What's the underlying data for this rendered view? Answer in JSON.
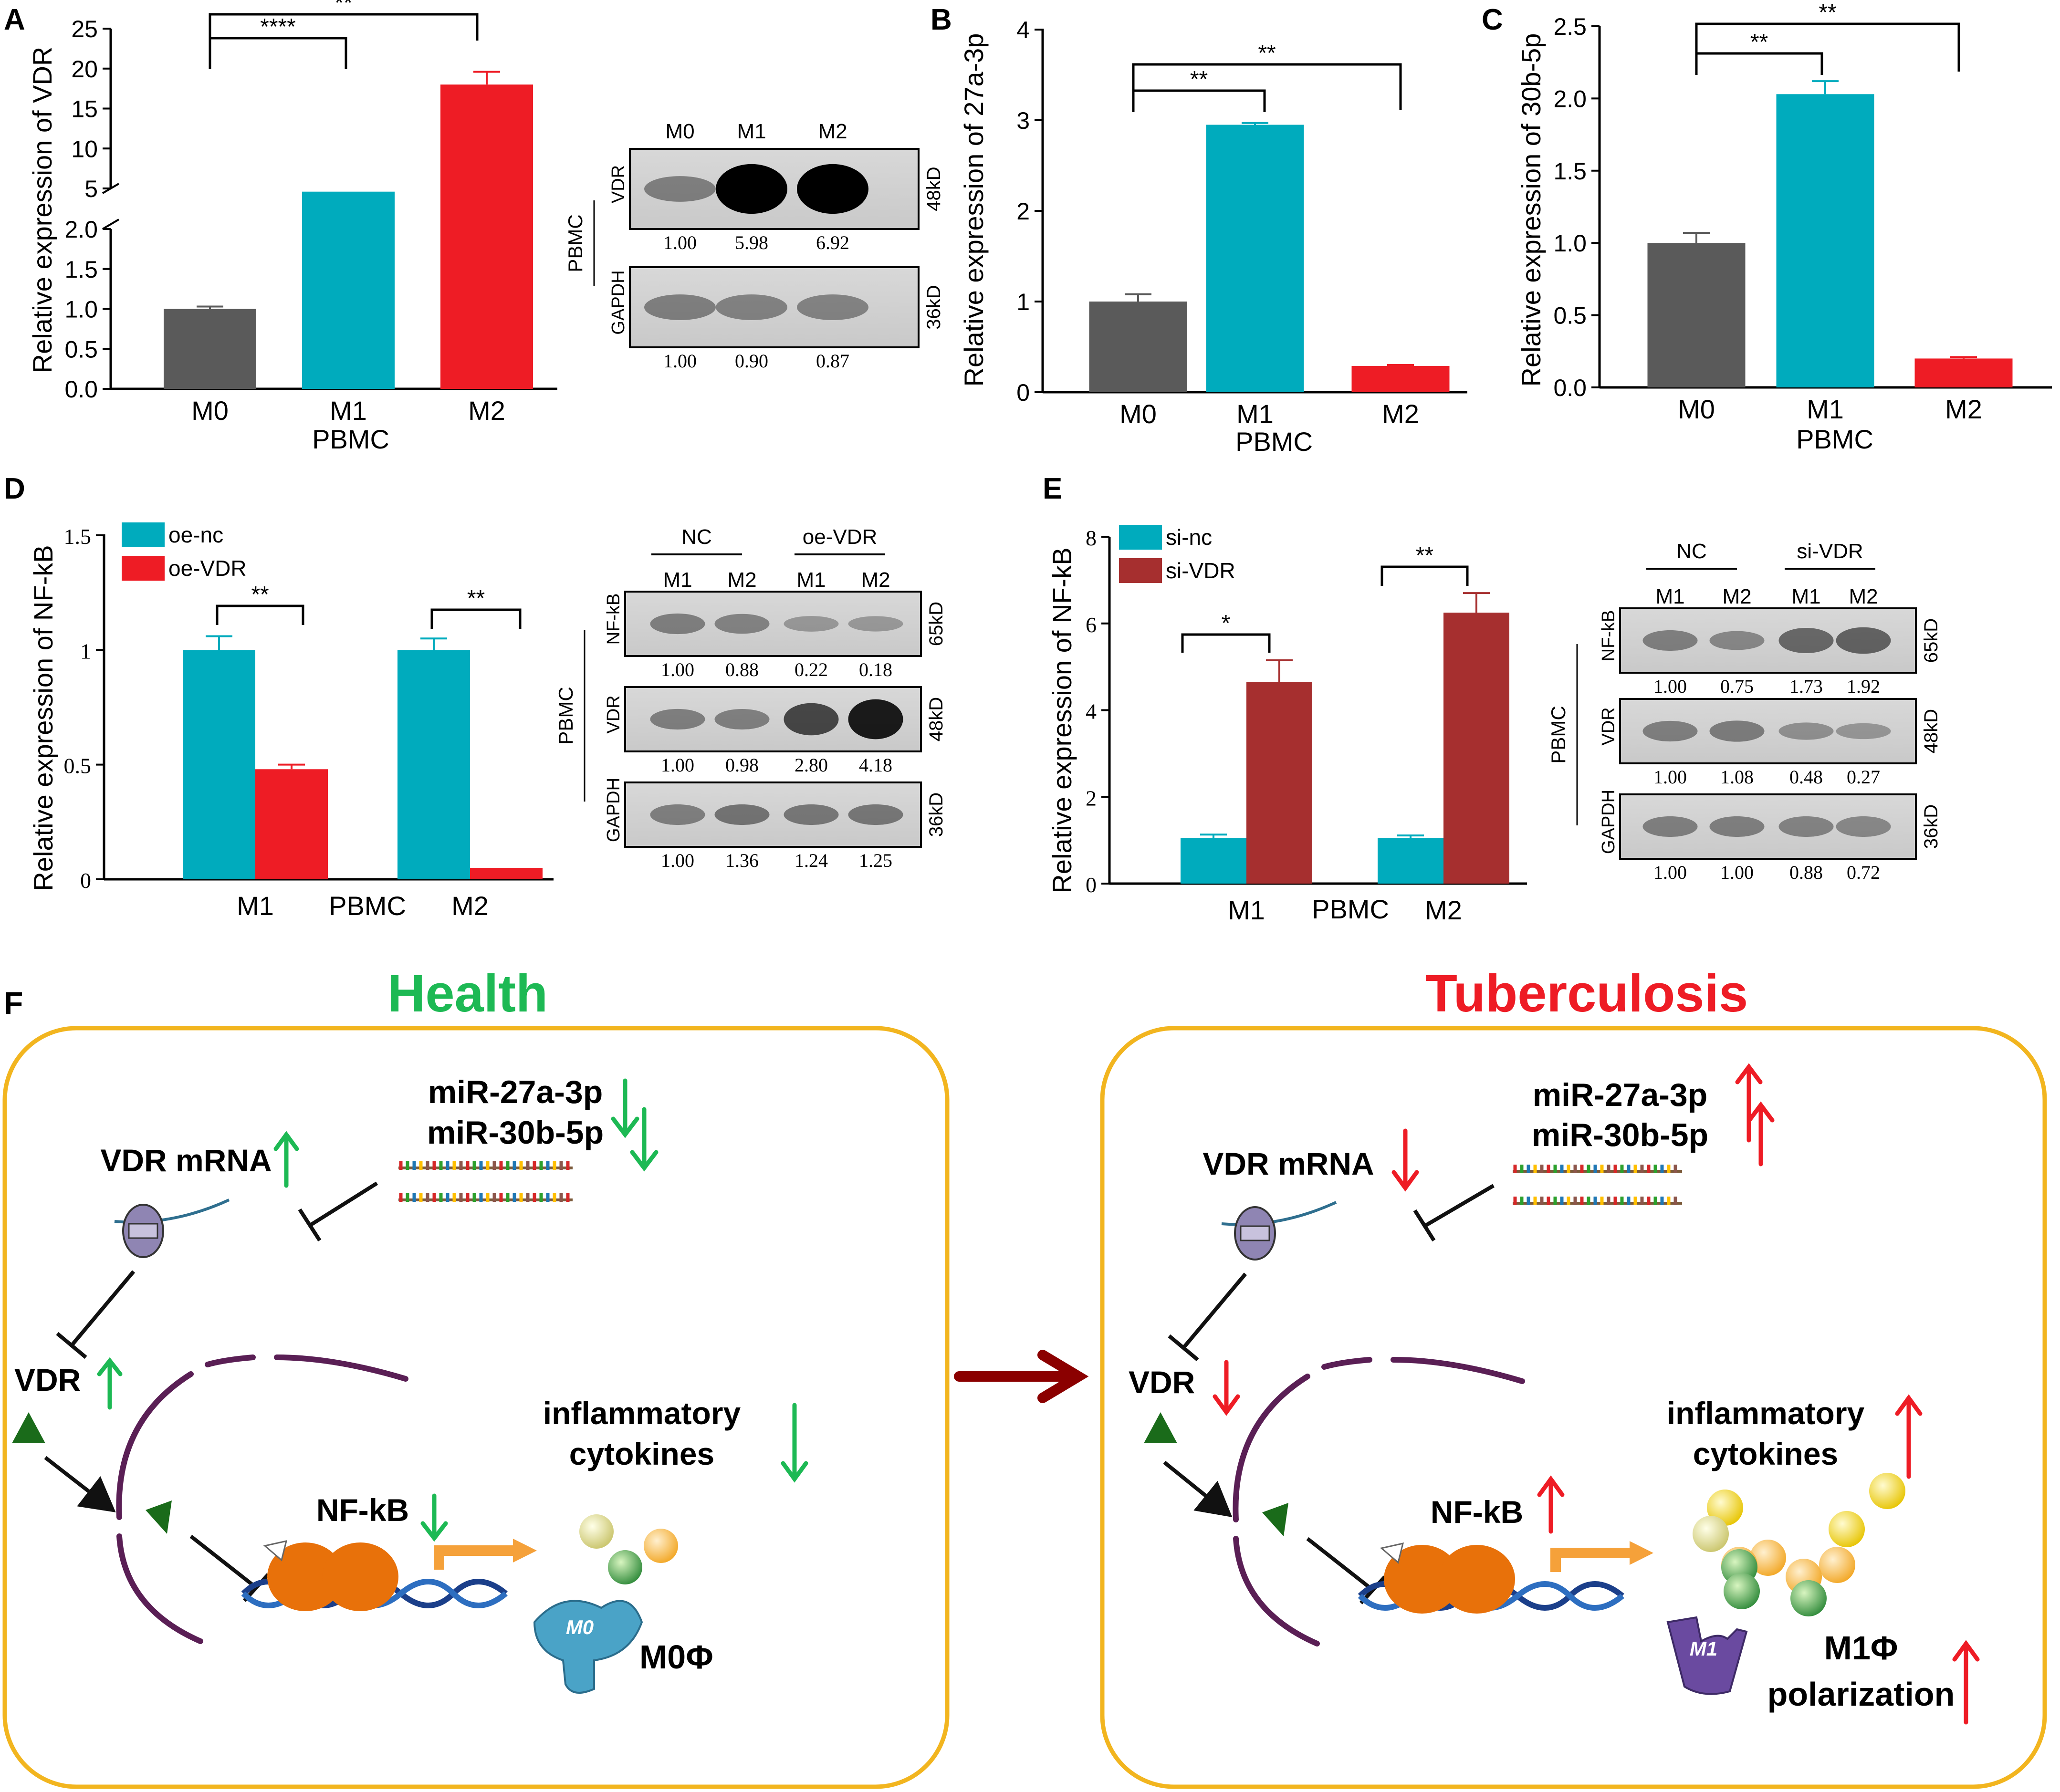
{
  "colors": {
    "gray": "#5a5a5a",
    "teal": "#00abbd",
    "red": "#ee1c25",
    "darkred": "#a62f2f",
    "green": "#1db954",
    "tb_red": "#ee1c25",
    "cell_border": "#f2b51f",
    "big_arrow": "#8b0000"
  },
  "chart_data": [
    {
      "panel": "A",
      "type": "bar",
      "categories": [
        "M0",
        "M1",
        "M2"
      ],
      "values": [
        1.0,
        4.6,
        18.0
      ],
      "errors": [
        0.03,
        0.0,
        1.6
      ],
      "xlabel": "PBMC",
      "ylabel": "Relative expression of VDR",
      "ylim": [
        0,
        25
      ],
      "axis_break": [
        2.0,
        5
      ],
      "lower_ticks": [
        "0.0",
        "0.5",
        "1.0",
        "1.5",
        "2.0"
      ],
      "upper_ticks": [
        "5",
        "10",
        "15",
        "20",
        "25"
      ],
      "significance": [
        {
          "from": "M0",
          "to": "M1",
          "label": "****"
        },
        {
          "from": "M0",
          "to": "M2",
          "label": "**"
        }
      ]
    },
    {
      "panel": "B",
      "type": "bar",
      "categories": [
        "M0",
        "M1",
        "M2"
      ],
      "values": [
        1.0,
        2.95,
        0.29
      ],
      "errors": [
        0.08,
        0.02,
        0.01
      ],
      "xlabel": "PBMC",
      "ylabel": "Relative expression of 27a-3p",
      "ylim": [
        0,
        4
      ],
      "ticks": [
        "0",
        "1",
        "2",
        "3",
        "4"
      ],
      "significance": [
        {
          "from": "M0",
          "to": "M1",
          "label": "**"
        },
        {
          "from": "M0",
          "to": "M2",
          "label": "**"
        }
      ]
    },
    {
      "panel": "C",
      "type": "bar",
      "categories": [
        "M0",
        "M1",
        "M2"
      ],
      "values": [
        1.0,
        2.03,
        0.2
      ],
      "errors": [
        0.07,
        0.09,
        0.01
      ],
      "xlabel": "PBMC",
      "ylabel": "Relative expression of 30b-5p",
      "ylim": [
        0,
        2.5
      ],
      "ticks": [
        "0.0",
        "0.5",
        "1.0",
        "1.5",
        "2.0",
        "2.5"
      ],
      "significance": [
        {
          "from": "M0",
          "to": "M1",
          "label": "**"
        },
        {
          "from": "M0",
          "to": "M2",
          "label": "**"
        }
      ]
    },
    {
      "panel": "D",
      "type": "bar",
      "categories": [
        "M1",
        "M2"
      ],
      "xlabel": "PBMC",
      "ylabel": "Relative expression of NF-kB",
      "ylim": [
        0,
        1.5
      ],
      "ticks": [
        "0",
        "0.5",
        "1",
        "1.5"
      ],
      "series": [
        {
          "name": "oe-nc",
          "values": [
            1.0,
            1.0
          ],
          "errors": [
            0.06,
            0.05
          ]
        },
        {
          "name": "oe-VDR",
          "values": [
            0.48,
            0.05
          ],
          "errors": [
            0.02,
            0.0
          ]
        }
      ],
      "significance": [
        {
          "group": "M1",
          "label": "**"
        },
        {
          "group": "M2",
          "label": "**"
        }
      ]
    },
    {
      "panel": "E",
      "type": "bar",
      "categories": [
        "M1",
        "M2"
      ],
      "xlabel": "PBMC",
      "ylabel": "Relative expression of NF-kB",
      "ylim": [
        0,
        8
      ],
      "ticks": [
        "0",
        "2",
        "4",
        "6",
        "8"
      ],
      "series": [
        {
          "name": "si-nc",
          "values": [
            1.05,
            1.05
          ],
          "errors": [
            0.08,
            0.06
          ]
        },
        {
          "name": "si-VDR",
          "values": [
            4.65,
            6.25
          ],
          "errors": [
            0.5,
            0.45
          ]
        }
      ],
      "significance": [
        {
          "group": "M1",
          "label": "*"
        },
        {
          "group": "M2",
          "label": "**"
        }
      ]
    }
  ],
  "blotA": {
    "lanes": [
      "M0",
      "M1",
      "M2"
    ],
    "side": "PBMC",
    "rows": [
      {
        "protein": "VDR",
        "kd": "48kD",
        "quant": [
          "1.00",
          "5.98",
          "6.92"
        ]
      },
      {
        "protein": "GAPDH",
        "kd": "36kD",
        "quant": [
          "1.00",
          "0.90",
          "0.87"
        ]
      }
    ]
  },
  "blotD": {
    "groups": [
      "NC",
      "oe-VDR"
    ],
    "lanes": [
      "M1",
      "M2",
      "M1",
      "M2"
    ],
    "side": "PBMC",
    "rows": [
      {
        "protein": "NF-kB",
        "kd": "65kD",
        "quant": [
          "1.00",
          "0.88",
          "0.22",
          "0.18"
        ]
      },
      {
        "protein": "VDR",
        "kd": "48kD",
        "quant": [
          "1.00",
          "0.98",
          "2.80",
          "4.18"
        ]
      },
      {
        "protein": "GAPDH",
        "kd": "36kD",
        "quant": [
          "1.00",
          "1.36",
          "1.24",
          "1.25"
        ]
      }
    ]
  },
  "blotE": {
    "groups": [
      "NC",
      "si-VDR"
    ],
    "lanes": [
      "M1",
      "M2",
      "M1",
      "M2"
    ],
    "side": "PBMC",
    "rows": [
      {
        "protein": "NF-kB",
        "kd": "65kD",
        "quant": [
          "1.00",
          "0.75",
          "1.73",
          "1.92"
        ]
      },
      {
        "protein": "VDR",
        "kd": "48kD",
        "quant": [
          "1.00",
          "1.08",
          "0.48",
          "0.27"
        ]
      },
      {
        "protein": "GAPDH",
        "kd": "36kD",
        "quant": [
          "1.00",
          "1.00",
          "0.88",
          "0.72"
        ]
      }
    ]
  },
  "panelF": {
    "label": "F",
    "health": {
      "title": "Health",
      "mir1": "miR-27a-3p",
      "mir2": "miR-30b-5p",
      "vdr_mrna": "VDR mRNA",
      "vdr": "VDR",
      "inflam1": "inflammatory",
      "inflam2": "cytokines",
      "nfkb": "NF-kB",
      "cell": "M0Φ",
      "cell_badge": "M0"
    },
    "tb": {
      "title": "Tuberculosis",
      "mir1": "miR-27a-3p",
      "mir2": "miR-30b-5p",
      "vdr_mrna": "VDR mRNA",
      "vdr": "VDR",
      "inflam1": "inflammatory",
      "inflam2": "cytokines",
      "nfkb": "NF-kB",
      "cell": "M1Φ",
      "cell2": "polarization",
      "cell_badge": "M1"
    }
  }
}
